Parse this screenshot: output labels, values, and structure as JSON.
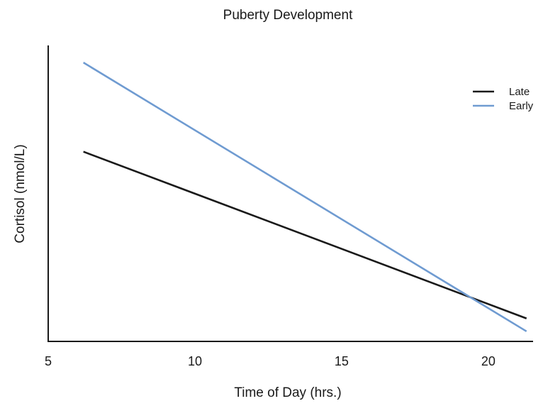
{
  "chart_data": {
    "type": "line",
    "title": "Puberty Development",
    "xlabel": "Time of Day (hrs.)",
    "ylabel": "Cortisol (nmol/L)",
    "xlim": [
      5,
      21.5
    ],
    "ylim": [
      0,
      10
    ],
    "xticks": [
      "5",
      "10",
      "15",
      "20"
    ],
    "xtick_values": [
      5,
      10,
      15,
      20
    ],
    "grid": false,
    "legend_position": "top-right",
    "series": [
      {
        "name": "Late",
        "color": "#1a1a1a",
        "x": [
          6.2,
          21.3
        ],
        "y": [
          6.6,
          0.8
        ]
      },
      {
        "name": "Early",
        "color": "#6f9bd1",
        "x": [
          6.2,
          21.3
        ],
        "y": [
          9.7,
          0.35
        ]
      }
    ]
  }
}
